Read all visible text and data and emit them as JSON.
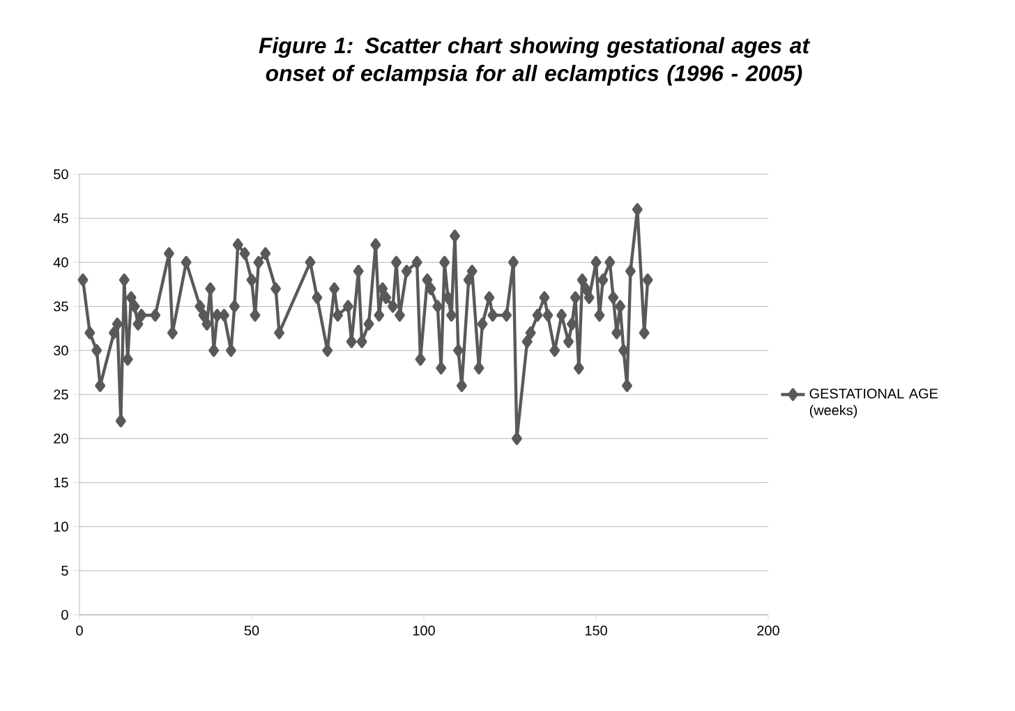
{
  "chart_data": {
    "type": "line",
    "title": "Figure 1: Scatter chart showing gestational ages at onset of eclampsia for all eclamptics (1996 - 2005)",
    "xlim": [
      0,
      200
    ],
    "xticks": [
      0,
      50,
      100,
      150,
      200
    ],
    "ylim": [
      0,
      50
    ],
    "yticks": [
      0,
      5,
      10,
      15,
      20,
      25,
      30,
      35,
      40,
      45,
      50
    ],
    "grid": "y",
    "legend": "right",
    "marker": "diamond",
    "line_style": "solid",
    "series": [
      {
        "name": "GESTATIONAL AGE (weeks)",
        "color": "#595959",
        "x": [
          1,
          3,
          5,
          6,
          10,
          11,
          12,
          13,
          14,
          15,
          16,
          17,
          18,
          22,
          26,
          27,
          31,
          35,
          36,
          37,
          38,
          39,
          40,
          42,
          44,
          45,
          46,
          48,
          50,
          51,
          52,
          54,
          57,
          58,
          67,
          69,
          72,
          74,
          75,
          78,
          79,
          81,
          82,
          84,
          86,
          87,
          88,
          89,
          91,
          92,
          93,
          95,
          98,
          99,
          101,
          102,
          104,
          105,
          106,
          107,
          108,
          109,
          110,
          111,
          113,
          114,
          116,
          117,
          119,
          120,
          124,
          126,
          127,
          130,
          131,
          133,
          135,
          136,
          138,
          140,
          142,
          143,
          144,
          145,
          146,
          147,
          148,
          150,
          151,
          152,
          154,
          155,
          156,
          157,
          158,
          159,
          160,
          162,
          164,
          165
        ],
        "values": [
          38,
          32,
          30,
          26,
          32,
          33,
          22,
          38,
          29,
          36,
          35,
          33,
          34,
          34,
          41,
          32,
          40,
          35,
          34,
          33,
          37,
          30,
          34,
          34,
          30,
          35,
          42,
          41,
          38,
          34,
          40,
          41,
          37,
          32,
          40,
          36,
          30,
          37,
          34,
          35,
          31,
          39,
          31,
          33,
          42,
          34,
          37,
          36,
          35,
          40,
          34,
          39,
          40,
          29,
          38,
          37,
          35,
          28,
          40,
          36,
          34,
          43,
          30,
          26,
          38,
          39,
          28,
          33,
          36,
          34,
          34,
          40,
          20,
          31,
          32,
          34,
          36,
          34,
          30,
          34,
          31,
          33,
          36,
          28,
          38,
          37,
          36,
          40,
          34,
          38,
          40,
          36,
          32,
          35,
          30,
          26,
          39,
          46,
          32,
          38
        ]
      }
    ]
  }
}
